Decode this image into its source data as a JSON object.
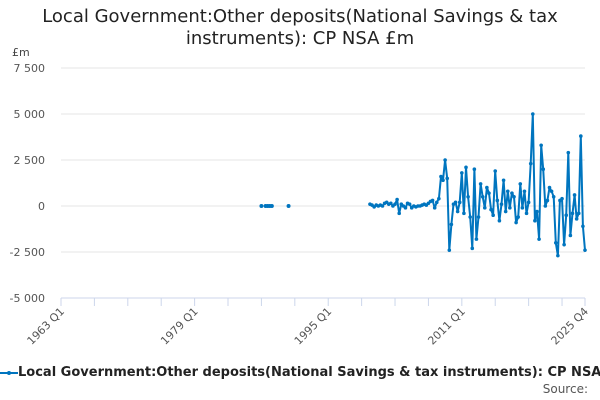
{
  "chart_data": {
    "type": "line",
    "title": "Local Government:Other deposits(National Savings & tax instruments): CP NSA £m",
    "ylabel": "£m",
    "xlabel": "",
    "ylim": [
      -5000,
      7500
    ],
    "yticks": [
      7500,
      5000,
      2500,
      0,
      -2500,
      -5000
    ],
    "ytick_labels": [
      "7 500",
      "5 000",
      "2 500",
      "0",
      "-2 500",
      "-5 000"
    ],
    "x_range": [
      "1963 Q1",
      "2025 Q4"
    ],
    "xtick_labels": [
      "1963 Q1",
      "1979 Q1",
      "1995 Q1",
      "2011 Q1",
      "2025 Q4"
    ],
    "grid": true,
    "legend": "bottom",
    "color": "#0075bf",
    "series": [
      {
        "name": "Local Government:Other deposits(National Savings & tax instruments): CP NSA £m",
        "isolated_points": [
          {
            "q": "1987 Q1",
            "v": 0
          },
          {
            "q": "1987 Q3",
            "v": 0
          },
          {
            "q": "1987 Q4",
            "v": 0
          },
          {
            "q": "1988 Q1",
            "v": 0
          },
          {
            "q": "1988 Q2",
            "v": 0
          },
          {
            "q": "1990 Q2",
            "v": 0
          }
        ],
        "continuous_start": "2000 Q1",
        "values": [
          100,
          50,
          -50,
          50,
          0,
          50,
          0,
          150,
          200,
          100,
          150,
          0,
          100,
          350,
          -400,
          100,
          0,
          -100,
          150,
          100,
          -100,
          0,
          -50,
          0,
          0,
          50,
          100,
          50,
          150,
          250,
          300,
          -100,
          200,
          400,
          1600,
          1400,
          2500,
          1500,
          -2400,
          -1000,
          100,
          200,
          -300,
          200,
          1800,
          -400,
          2100,
          500,
          -600,
          -2300,
          2000,
          -1800,
          -600,
          1200,
          500,
          -100,
          1000,
          700,
          -200,
          -500,
          1900,
          300,
          -800,
          100,
          1400,
          -300,
          800,
          -100,
          700,
          500,
          -900,
          -600,
          1200,
          -100,
          800,
          -400,
          200,
          2300,
          5000,
          -800,
          -300,
          -1800,
          3300,
          2000,
          0,
          300,
          1000,
          800,
          500,
          -2000,
          -2700,
          300,
          400,
          -2100,
          -500,
          2900,
          -1600,
          -400,
          600,
          -700,
          -400,
          3800,
          -1100,
          -2400
        ]
      }
    ],
    "source_label": "Source:"
  }
}
